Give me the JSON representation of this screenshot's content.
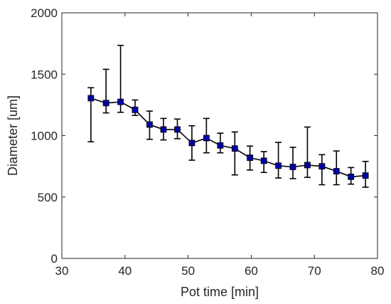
{
  "chart_data": {
    "type": "line",
    "title": "",
    "xlabel": "Pot time [min]",
    "ylabel": "Diameter [um]",
    "xlim": [
      30,
      80
    ],
    "ylim": [
      0,
      2000
    ],
    "x_ticks": [
      30,
      40,
      50,
      60,
      70,
      80
    ],
    "y_ticks": [
      0,
      500,
      1000,
      1500,
      2000
    ],
    "x_tick_labels": [
      "30",
      "40",
      "50",
      "60",
      "70",
      "80"
    ],
    "y_tick_labels": [
      "0",
      "500",
      "1000",
      "1500",
      "2000"
    ],
    "grid": false,
    "legend": false,
    "series": [
      {
        "line_color": "#000000",
        "marker": "square",
        "marker_color": "#0000a8",
        "points": [
          {
            "x": 34.6,
            "y": 1305,
            "err_low": 950,
            "err_high": 1390
          },
          {
            "x": 37.0,
            "y": 1265,
            "err_low": 1185,
            "err_high": 1540
          },
          {
            "x": 39.3,
            "y": 1275,
            "err_low": 1190,
            "err_high": 1735
          },
          {
            "x": 41.6,
            "y": 1210,
            "err_low": 1165,
            "err_high": 1290
          },
          {
            "x": 43.9,
            "y": 1090,
            "err_low": 970,
            "err_high": 1200
          },
          {
            "x": 46.1,
            "y": 1050,
            "err_low": 965,
            "err_high": 1140
          },
          {
            "x": 48.3,
            "y": 1050,
            "err_low": 975,
            "err_high": 1135
          },
          {
            "x": 50.6,
            "y": 940,
            "err_low": 800,
            "err_high": 1080
          },
          {
            "x": 52.9,
            "y": 980,
            "err_low": 860,
            "err_high": 1140
          },
          {
            "x": 55.1,
            "y": 920,
            "err_low": 860,
            "err_high": 1020
          },
          {
            "x": 57.4,
            "y": 895,
            "err_low": 680,
            "err_high": 1030
          },
          {
            "x": 59.8,
            "y": 820,
            "err_low": 720,
            "err_high": 915
          },
          {
            "x": 62.0,
            "y": 795,
            "err_low": 700,
            "err_high": 870
          },
          {
            "x": 64.3,
            "y": 755,
            "err_low": 655,
            "err_high": 945
          },
          {
            "x": 66.6,
            "y": 745,
            "err_low": 650,
            "err_high": 905
          },
          {
            "x": 68.9,
            "y": 760,
            "err_low": 660,
            "err_high": 1070
          },
          {
            "x": 71.2,
            "y": 750,
            "err_low": 600,
            "err_high": 845
          },
          {
            "x": 73.5,
            "y": 710,
            "err_low": 600,
            "err_high": 875
          },
          {
            "x": 75.8,
            "y": 665,
            "err_low": 605,
            "err_high": 740
          },
          {
            "x": 78.1,
            "y": 675,
            "err_low": 580,
            "err_high": 790
          }
        ]
      }
    ]
  }
}
